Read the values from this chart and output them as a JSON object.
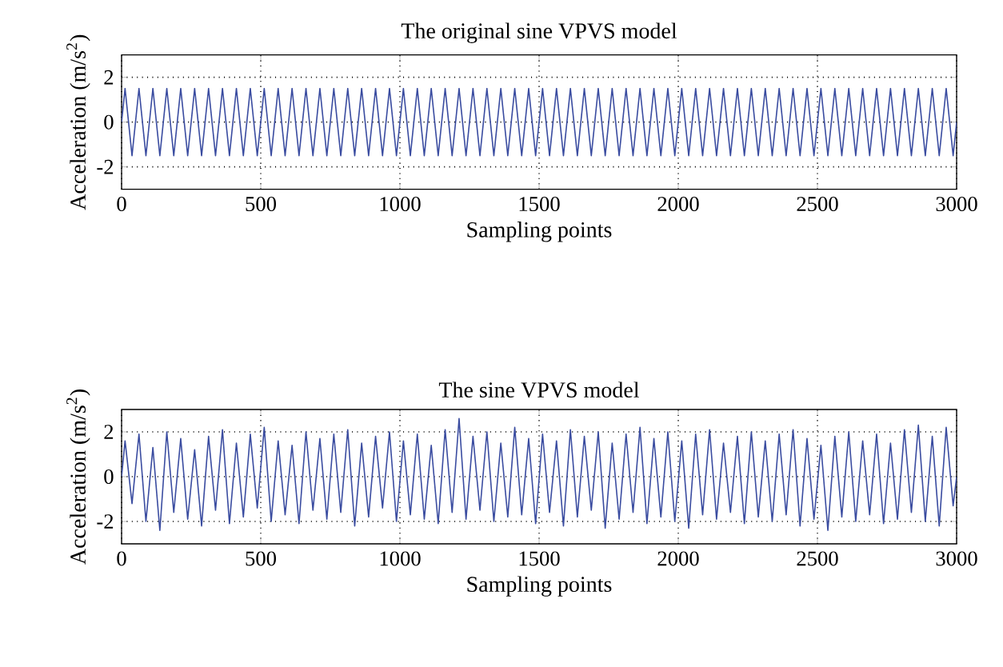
{
  "chart_data": [
    {
      "type": "line",
      "title": "The original sine VPVS model",
      "xlabel": "Sampling points",
      "ylabel": "Acceleration (m/s$^{2}$)",
      "xlim": [
        0,
        3000
      ],
      "ylim": [
        -3,
        3
      ],
      "xticks": [
        0,
        500,
        1000,
        1500,
        2000,
        2500,
        3000
      ],
      "yticks": [
        -2,
        0,
        2
      ],
      "grid": true,
      "color": "#3a4ca0",
      "x": [
        0,
        12.5,
        37.5,
        62.5,
        87.5,
        112.5,
        137.5,
        162.5,
        187.5,
        212.5,
        237.5,
        262.5,
        287.5,
        312.5,
        337.5,
        362.5,
        387.5,
        412.5,
        437.5,
        462.5,
        487.5,
        512.5,
        537.5,
        562.5,
        587.5,
        612.5,
        637.5,
        662.5,
        687.5,
        712.5,
        737.5,
        762.5,
        787.5,
        812.5,
        837.5,
        862.5,
        887.5,
        912.5,
        937.5,
        962.5,
        987.5,
        1012.5,
        1037.5,
        1062.5,
        1087.5,
        1112.5,
        1137.5,
        1162.5,
        1187.5,
        1212.5,
        1237.5,
        1262.5,
        1287.5,
        1312.5,
        1337.5,
        1362.5,
        1387.5,
        1412.5,
        1437.5,
        1462.5,
        1487.5,
        1512.5,
        1537.5,
        1562.5,
        1587.5,
        1612.5,
        1637.5,
        1662.5,
        1687.5,
        1712.5,
        1737.5,
        1762.5,
        1787.5,
        1812.5,
        1837.5,
        1862.5,
        1887.5,
        1912.5,
        1937.5,
        1962.5,
        1987.5,
        2012.5,
        2037.5,
        2062.5,
        2087.5,
        2112.5,
        2137.5,
        2162.5,
        2187.5,
        2212.5,
        2237.5,
        2262.5,
        2287.5,
        2312.5,
        2337.5,
        2362.5,
        2387.5,
        2412.5,
        2437.5,
        2462.5,
        2487.5,
        2512.5,
        2537.5,
        2562.5,
        2587.5,
        2612.5,
        2637.5,
        2662.5,
        2687.5,
        2712.5,
        2737.5,
        2762.5,
        2787.5,
        2812.5,
        2837.5,
        2862.5,
        2887.5,
        2912.5,
        2937.5,
        2962.5,
        2987.5,
        3000
      ],
      "values": [
        0,
        1.5,
        -1.5,
        1.5,
        -1.5,
        1.5,
        -1.5,
        1.5,
        -1.5,
        1.5,
        -1.5,
        1.5,
        -1.5,
        1.5,
        -1.5,
        1.5,
        -1.5,
        1.5,
        -1.5,
        1.5,
        -1.5,
        1.5,
        -1.5,
        1.5,
        -1.5,
        1.5,
        -1.5,
        1.5,
        -1.5,
        1.5,
        -1.5,
        1.5,
        -1.5,
        1.5,
        -1.5,
        1.5,
        -1.5,
        1.5,
        -1.5,
        1.5,
        -1.5,
        1.5,
        -1.5,
        1.5,
        -1.5,
        1.5,
        -1.5,
        1.5,
        -1.5,
        1.5,
        -1.5,
        1.5,
        -1.5,
        1.5,
        -1.5,
        1.5,
        -1.5,
        1.5,
        -1.5,
        1.5,
        -1.5,
        1.5,
        -1.5,
        1.5,
        -1.5,
        1.5,
        -1.5,
        1.5,
        -1.5,
        1.5,
        -1.5,
        1.5,
        -1.5,
        1.5,
        -1.5,
        1.5,
        -1.5,
        1.5,
        -1.5,
        1.5,
        -1.5,
        1.5,
        -1.5,
        1.5,
        -1.5,
        1.5,
        -1.5,
        1.5,
        -1.5,
        1.5,
        -1.5,
        1.5,
        -1.5,
        1.5,
        -1.5,
        1.5,
        -1.5,
        1.5,
        -1.5,
        1.5,
        -1.5,
        1.5,
        -1.5,
        1.5,
        -1.5,
        1.5,
        -1.5,
        1.5,
        -1.5,
        1.5,
        -1.5,
        1.5,
        -1.5,
        1.5,
        -1.5,
        1.5,
        -1.5,
        1.5,
        -1.5,
        1.5,
        -1.5,
        0
      ]
    },
    {
      "type": "line",
      "title": "The sine VPVS model",
      "xlabel": "Sampling points",
      "ylabel": "Acceleration (m/s$^{2}$)",
      "xlim": [
        0,
        3000
      ],
      "ylim": [
        -3,
        3
      ],
      "xticks": [
        0,
        500,
        1000,
        1500,
        2000,
        2500,
        3000
      ],
      "yticks": [
        -2,
        0,
        2
      ],
      "grid": true,
      "color": "#3a4ca0",
      "x": [
        0,
        12.5,
        37.5,
        62.5,
        87.5,
        112.5,
        137.5,
        162.5,
        187.5,
        212.5,
        237.5,
        262.5,
        287.5,
        312.5,
        337.5,
        362.5,
        387.5,
        412.5,
        437.5,
        462.5,
        487.5,
        512.5,
        537.5,
        562.5,
        587.5,
        612.5,
        637.5,
        662.5,
        687.5,
        712.5,
        737.5,
        762.5,
        787.5,
        812.5,
        837.5,
        862.5,
        887.5,
        912.5,
        937.5,
        962.5,
        987.5,
        1012.5,
        1037.5,
        1062.5,
        1087.5,
        1112.5,
        1137.5,
        1162.5,
        1187.5,
        1212.5,
        1237.5,
        1262.5,
        1287.5,
        1312.5,
        1337.5,
        1362.5,
        1387.5,
        1412.5,
        1437.5,
        1462.5,
        1487.5,
        1512.5,
        1537.5,
        1562.5,
        1587.5,
        1612.5,
        1637.5,
        1662.5,
        1687.5,
        1712.5,
        1737.5,
        1762.5,
        1787.5,
        1812.5,
        1837.5,
        1862.5,
        1887.5,
        1912.5,
        1937.5,
        1962.5,
        1987.5,
        2012.5,
        2037.5,
        2062.5,
        2087.5,
        2112.5,
        2137.5,
        2162.5,
        2187.5,
        2212.5,
        2237.5,
        2262.5,
        2287.5,
        2312.5,
        2337.5,
        2362.5,
        2387.5,
        2412.5,
        2437.5,
        2462.5,
        2487.5,
        2512.5,
        2537.5,
        2562.5,
        2587.5,
        2612.5,
        2637.5,
        2662.5,
        2687.5,
        2712.5,
        2737.5,
        2762.5,
        2787.5,
        2812.5,
        2837.5,
        2862.5,
        2887.5,
        2912.5,
        2937.5,
        2962.5,
        2987.5,
        3000
      ],
      "values": [
        0,
        1.6,
        -1.2,
        1.9,
        -2.0,
        1.3,
        -2.4,
        2.0,
        -1.6,
        1.7,
        -1.9,
        1.2,
        -2.2,
        1.8,
        -1.5,
        2.1,
        -2.1,
        1.5,
        -1.8,
        1.9,
        -1.4,
        2.2,
        -2.0,
        1.6,
        -1.7,
        1.4,
        -2.1,
        2.0,
        -1.5,
        1.7,
        -1.9,
        1.9,
        -1.6,
        2.1,
        -2.2,
        1.5,
        -1.8,
        1.8,
        -1.4,
        2.0,
        -2.0,
        1.6,
        -1.7,
        1.9,
        -1.9,
        1.4,
        -2.1,
        2.1,
        -1.6,
        2.6,
        -1.9,
        1.8,
        -1.5,
        2.0,
        -2.0,
        1.5,
        -1.8,
        2.2,
        -1.7,
        1.7,
        -2.1,
        1.9,
        -1.6,
        1.6,
        -2.2,
        2.1,
        -1.8,
        1.8,
        -1.5,
        2.0,
        -2.3,
        1.5,
        -1.9,
        1.9,
        -1.6,
        2.2,
        -2.1,
        1.7,
        -1.8,
        2.0,
        -2.0,
        1.6,
        -2.3,
        1.9,
        -1.7,
        2.1,
        -1.9,
        1.5,
        -1.6,
        1.8,
        -2.1,
        2.0,
        -1.8,
        1.6,
        -2.0,
        1.9,
        -1.7,
        2.1,
        -2.2,
        1.7,
        -1.9,
        1.4,
        -2.4,
        1.8,
        -1.8,
        2.0,
        -2.0,
        1.6,
        -1.7,
        1.9,
        -2.1,
        1.5,
        -1.9,
        2.1,
        -1.6,
        2.3,
        -2.0,
        1.8,
        -2.2,
        2.2,
        -1.3,
        0
      ]
    }
  ]
}
